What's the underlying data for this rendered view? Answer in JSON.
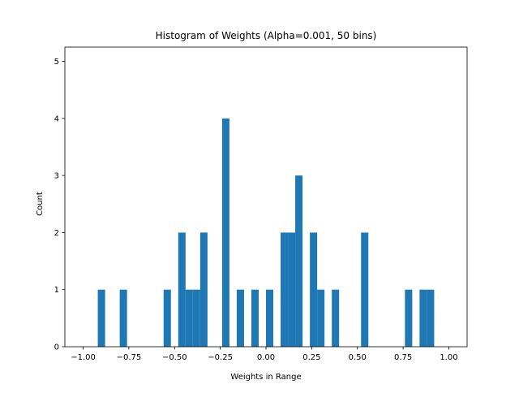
{
  "chart_data": {
    "type": "bar",
    "title": "Histogram of Weights (Alpha=0.001, 50 bins)",
    "xlabel": "Weights in Range",
    "ylabel": "Count",
    "xlim": [
      -1.1,
      1.1
    ],
    "ylim": [
      0,
      5.25
    ],
    "x_ticks": [
      -1.0,
      -0.75,
      -0.5,
      -0.25,
      0.0,
      0.25,
      0.5,
      0.75,
      1.0
    ],
    "x_tick_labels": [
      "−1.00",
      "−0.75",
      "−0.50",
      "−0.25",
      "0.00",
      "0.25",
      "0.50",
      "0.75",
      "1.00"
    ],
    "y_ticks": [
      0,
      1,
      2,
      3,
      4,
      5
    ],
    "y_tick_labels": [
      "0",
      "1",
      "2",
      "3",
      "4",
      "5"
    ],
    "bin_range": [
      -1.0,
      1.0
    ],
    "bins": 50,
    "bar_color": "#1f77b4",
    "grid": false,
    "legend": "none",
    "counts": [
      0,
      0,
      1,
      0,
      0,
      1,
      0,
      0,
      0,
      0,
      0,
      1,
      0,
      2,
      1,
      1,
      2,
      0,
      0,
      4,
      0,
      1,
      0,
      1,
      0,
      1,
      0,
      2,
      2,
      3,
      0,
      2,
      1,
      0,
      1,
      0,
      0,
      0,
      2,
      0,
      0,
      0,
      0,
      0,
      1,
      0,
      1,
      1,
      0,
      0
    ]
  }
}
